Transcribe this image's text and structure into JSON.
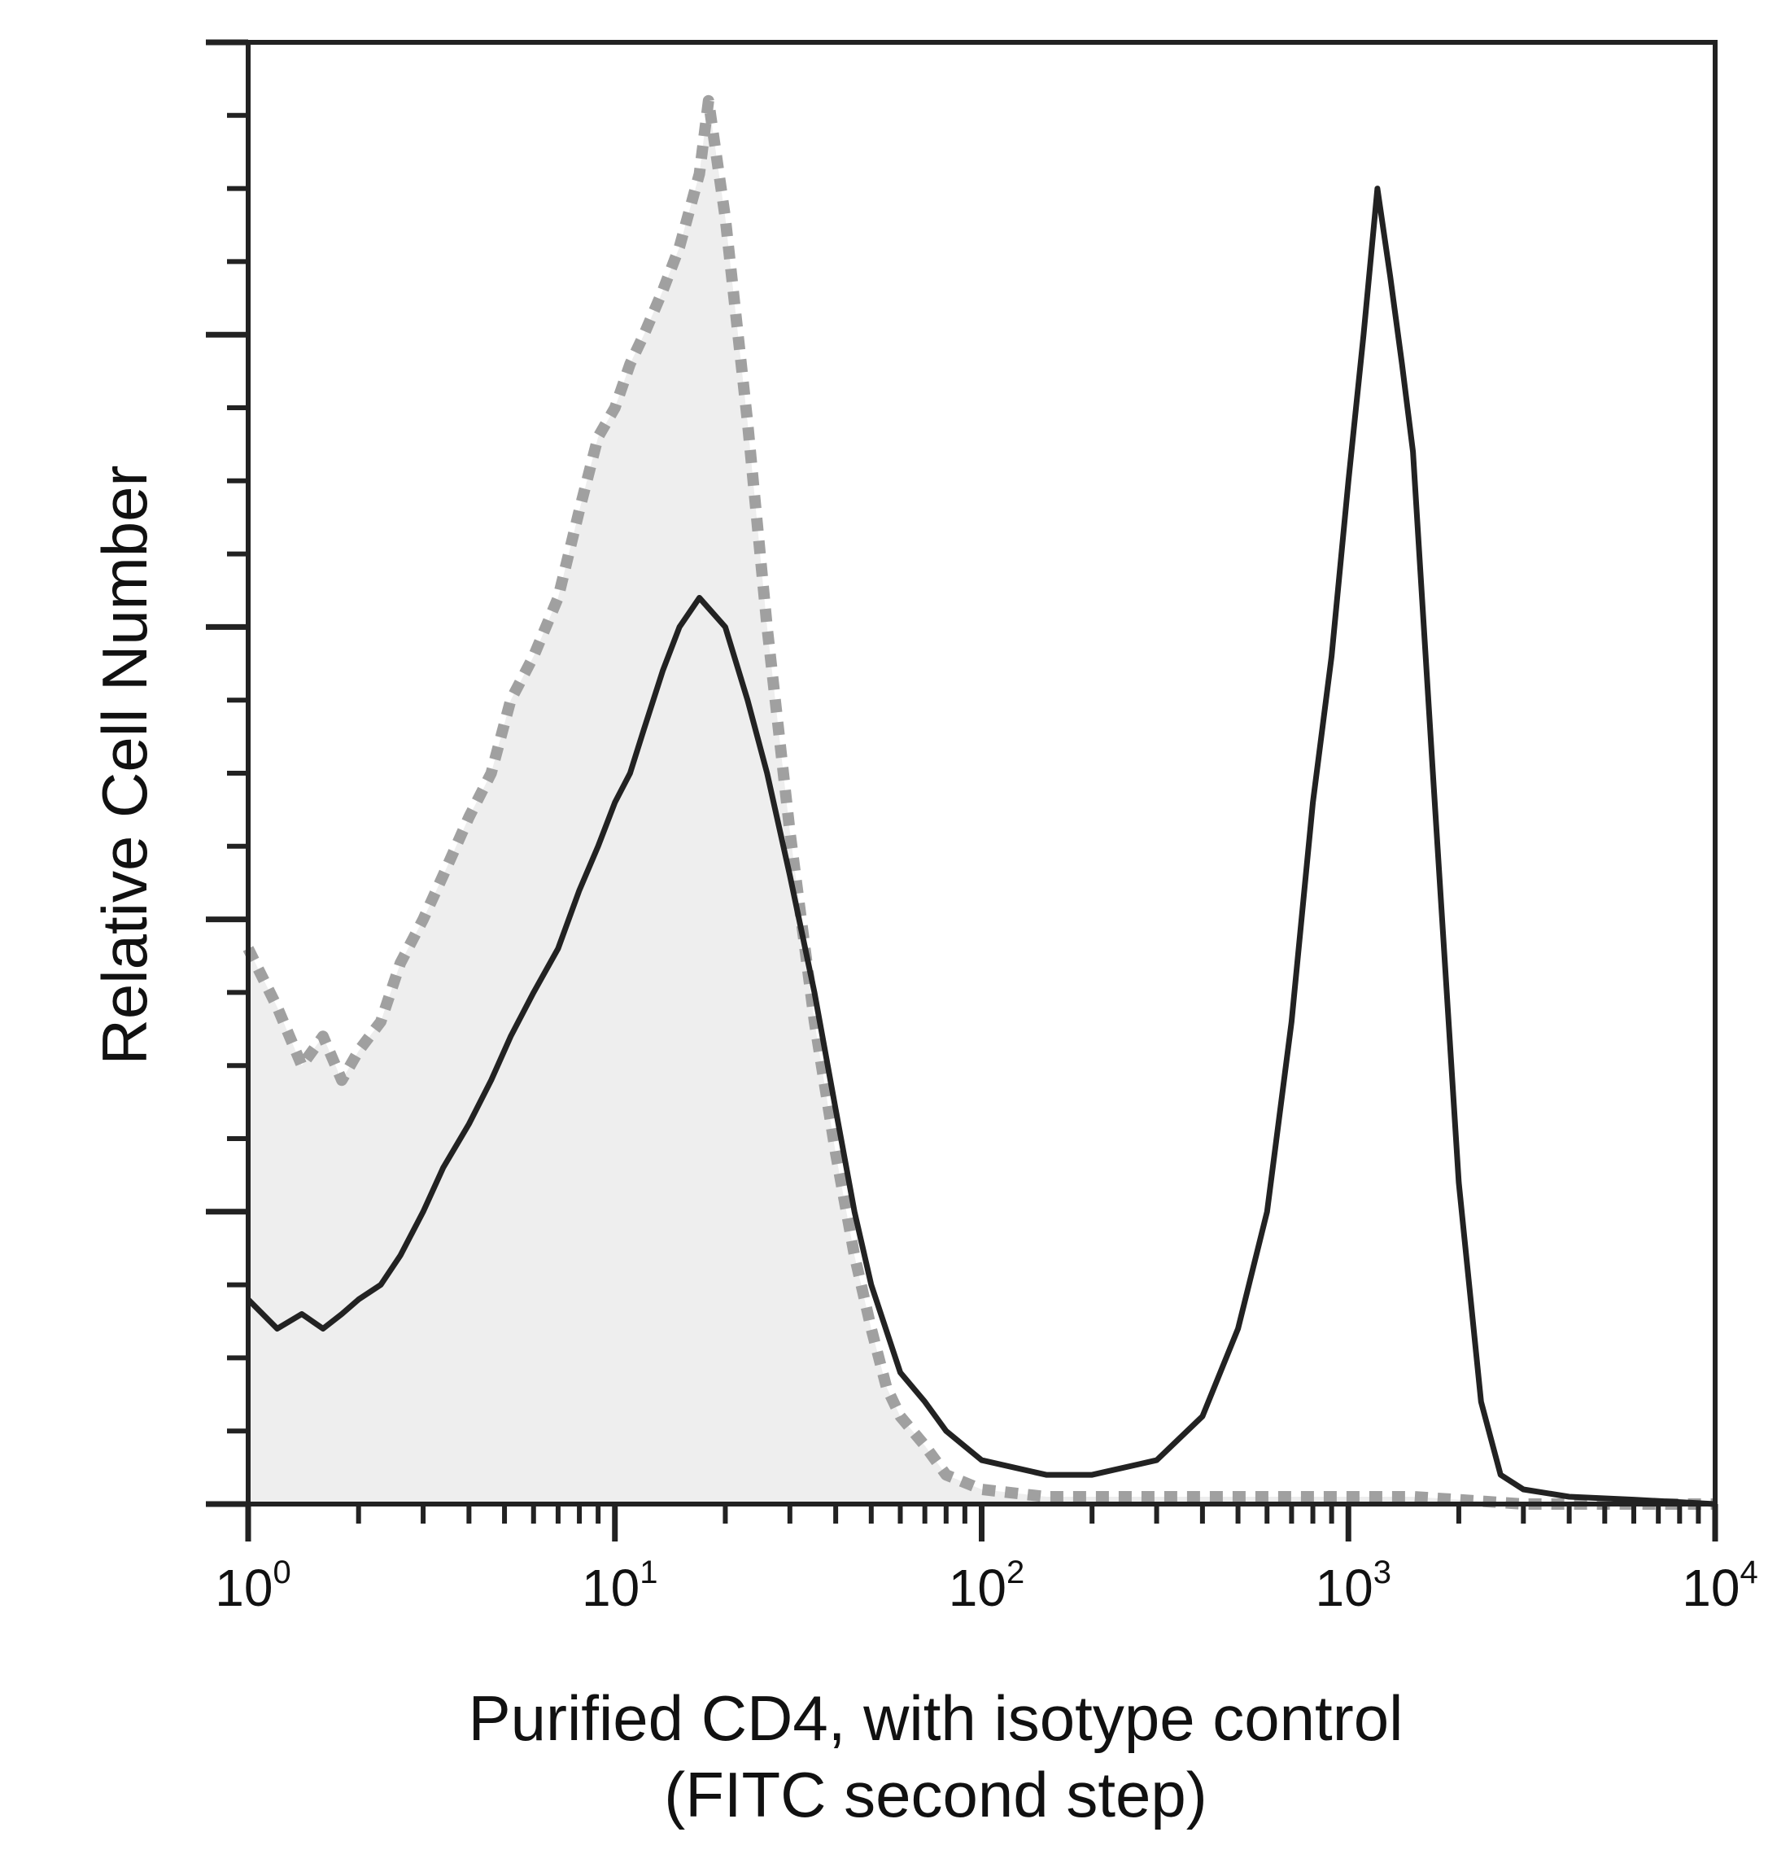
{
  "chart_data": {
    "type": "area",
    "title": "",
    "xlabel": "Purified CD4, with isotype control",
    "xlabel_line2": "(FITC second step)",
    "ylabel": "Relative Cell Number",
    "x_scale": "log",
    "xlim": [
      1,
      10000
    ],
    "ylim": [
      0,
      100
    ],
    "y_tick_labels_shown": false,
    "grid": false,
    "legend": "none",
    "x_ticks": [
      {
        "value": 1,
        "base": "10",
        "exp": "0"
      },
      {
        "value": 10,
        "base": "10",
        "exp": "1"
      },
      {
        "value": 100,
        "base": "10",
        "exp": "2"
      },
      {
        "value": 1000,
        "base": "10",
        "exp": "3"
      },
      {
        "value": 10000,
        "base": "10",
        "exp": "4"
      }
    ],
    "series": [
      {
        "color": "#a0a0a0",
        "style": "filled-dashed",
        "x": [
          1.0,
          1.2,
          1.4,
          1.6,
          1.8,
          2.0,
          2.3,
          2.6,
          3.0,
          3.4,
          4.0,
          4.6,
          5.2,
          6.0,
          7.0,
          8.0,
          9.0,
          10.0,
          11.0,
          12.0,
          13.5,
          15.0,
          17.0,
          18.0,
          20.0,
          23.0,
          26.0,
          30.0,
          35.0,
          40.0,
          45.0,
          50.0,
          55.0,
          60.0,
          70.0,
          80.0,
          100.0,
          150.0,
          300.0,
          600.0,
          1000.0,
          1500.0,
          2000.0,
          3000.0,
          10000.0
        ],
        "y": [
          38,
          34,
          30,
          32,
          29,
          31,
          33,
          37,
          40,
          43,
          47,
          50,
          55,
          58,
          62,
          68,
          73,
          75,
          78,
          80,
          83,
          86,
          91,
          96,
          88,
          74,
          60,
          46,
          33,
          24,
          17,
          12,
          8,
          6,
          4,
          2,
          1,
          0.5,
          0.5,
          0.5,
          0.5,
          0.5,
          0.3,
          0,
          0
        ]
      },
      {
        "color": "#222222",
        "style": "line",
        "x": [
          1.0,
          1.2,
          1.4,
          1.6,
          1.8,
          2.0,
          2.3,
          2.6,
          3.0,
          3.4,
          4.0,
          4.6,
          5.2,
          6.0,
          7.0,
          8.0,
          9.0,
          10.0,
          11.0,
          12.0,
          13.5,
          15.0,
          17.0,
          20.0,
          23.0,
          26.0,
          30.0,
          35.0,
          40.0,
          45.0,
          50.0,
          60.0,
          70.0,
          80.0,
          100.0,
          150.0,
          200.0,
          300.0,
          400.0,
          500.0,
          600.0,
          700.0,
          800.0,
          900.0,
          1000.0,
          1100.0,
          1200.0,
          1300.0,
          1400.0,
          1500.0,
          1700.0,
          2000.0,
          2300.0,
          2600.0,
          3000.0,
          4000.0,
          6000.0,
          10000.0
        ],
        "y": [
          14,
          12,
          13,
          12,
          13,
          14,
          15,
          17,
          20,
          23,
          26,
          29,
          32,
          35,
          38,
          42,
          45,
          48,
          50,
          53,
          57,
          60,
          62,
          60,
          55,
          50,
          43,
          35,
          27,
          20,
          15,
          9,
          7,
          5,
          3,
          2,
          2,
          3,
          6,
          12,
          20,
          33,
          48,
          58,
          70,
          80,
          90,
          84,
          78,
          72,
          50,
          22,
          7,
          2,
          1,
          0.5,
          0.3,
          0
        ]
      }
    ]
  }
}
